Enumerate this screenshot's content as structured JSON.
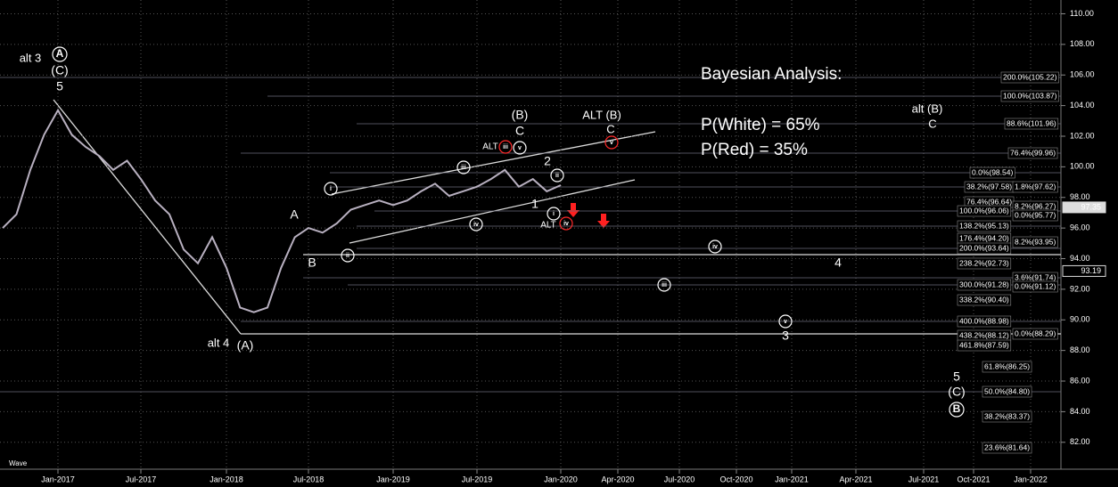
{
  "chart_data": {
    "type": "line",
    "x": [
      "Sep-2016",
      "Oct-2016",
      "Nov-2016",
      "Dec-2016",
      "Jan-2017",
      "Feb-2017",
      "Mar-2017",
      "Apr-2017",
      "May-2017",
      "Jun-2017",
      "Jul-2017",
      "Aug-2017",
      "Sep-2017",
      "Oct-2017",
      "Nov-2017",
      "Dec-2017",
      "Jan-2018",
      "Feb-2018",
      "Mar-2018",
      "Apr-2018",
      "May-2018",
      "Jun-2018",
      "Jul-2018",
      "Aug-2018",
      "Sep-2018",
      "Oct-2018",
      "Nov-2018",
      "Dec-2018",
      "Jan-2019",
      "Feb-2019",
      "Mar-2019",
      "Apr-2019",
      "May-2019",
      "Jun-2019",
      "Jul-2019",
      "Aug-2019",
      "Sep-2019",
      "Oct-2019",
      "Nov-2019",
      "Dec-2019",
      "Jan-2020"
    ],
    "series": [
      {
        "color": "#b8b0c0",
        "values": [
          96.0,
          96.9,
          99.8,
          102.1,
          103.7,
          102.1,
          101.3,
          100.7,
          99.8,
          100.4,
          99.2,
          97.8,
          96.9,
          94.6,
          93.7,
          95.4,
          93.4,
          90.8,
          90.5,
          90.8,
          93.4,
          95.4,
          96.0,
          95.7,
          96.3,
          97.2,
          97.5,
          97.8,
          97.5,
          97.8,
          98.4,
          98.9,
          98.1,
          98.4,
          98.7,
          99.2,
          99.8,
          98.7,
          99.2,
          98.4,
          98.8
        ]
      }
    ],
    "xticks": [
      "Jan-2017",
      "Jul-2017",
      "Jan-2018",
      "Jul-2018",
      "Jan-2019",
      "Jul-2019",
      "Jan-2020",
      "Apr-2020",
      "Jul-2020",
      "Oct-2020",
      "Jan-2021",
      "Apr-2021",
      "Jul-2021",
      "Oct-2021",
      "Jan-2022"
    ],
    "ylim": [
      80.3,
      110.9
    ],
    "yticks": [
      {
        "value": 82,
        "label": "82.00"
      },
      {
        "value": 84,
        "label": "84.00"
      },
      {
        "value": 86,
        "label": "86.00"
      },
      {
        "value": 88,
        "label": "88.00"
      },
      {
        "value": 90,
        "label": "90.00"
      },
      {
        "value": 92,
        "label": "92.00"
      },
      {
        "value": 94,
        "label": "94.00"
      },
      {
        "value": 96,
        "label": "96.00"
      },
      {
        "value": 98,
        "label": "98.00"
      },
      {
        "value": 100,
        "label": "100.00"
      },
      {
        "value": 102,
        "label": "102.00"
      },
      {
        "value": 104,
        "label": "104.00"
      },
      {
        "value": 106,
        "label": "106.00"
      },
      {
        "value": 108,
        "label": "108.00"
      },
      {
        "value": 110,
        "label": "110.00"
      }
    ],
    "grid": true,
    "price_markers": [
      97.35,
      93.19
    ],
    "analysis": [
      "Bayesian Analysis:",
      "P(White) = 65%",
      "P(Red) = 35%"
    ],
    "wave_labels": [
      "alt 3",
      "A",
      "(C)",
      "5",
      "alt 4",
      "(A)",
      "A",
      "B",
      "(B)",
      "C",
      "ALT (B)",
      "C",
      "ALT",
      "iii",
      "v",
      "i",
      "iii",
      "ii",
      "iv",
      "2",
      "ii",
      "1",
      "i",
      "ALT",
      "iv",
      "v",
      "iv",
      "iii",
      "4",
      "v",
      "3",
      "5",
      "(C)",
      "B",
      "alt (B)",
      "C",
      "Wave"
    ],
    "fib_labels": [
      "200.0%(105.22)",
      "100.0%(103.87)",
      "88.6%(101.96)",
      "76.4%(99.96)",
      "0.0%(98.54)",
      "38.2%(97.58)",
      "1.8%(97.62)",
      "76.4%(96.64)",
      "8.2%(96.27)",
      "100.0%(96.06)",
      "0.0%(95.77)",
      "138.2%(95.13)",
      "176.4%(94.20)",
      "8.2%(93.95)",
      "200.0%(93.64)",
      "238.2%(92.73)",
      "3.6%(91.74)",
      "300.0%(91.28)",
      "0.0%(91.12)",
      "338.2%(90.40)",
      "400.0%(88.98)",
      "0.0%(88.29)",
      "438.2%(88.12)",
      "461.8%(87.59)",
      "61.8%(86.25)",
      "50.0%(84.80)",
      "38.2%(83.37)",
      "23.6%(81.64)"
    ]
  }
}
